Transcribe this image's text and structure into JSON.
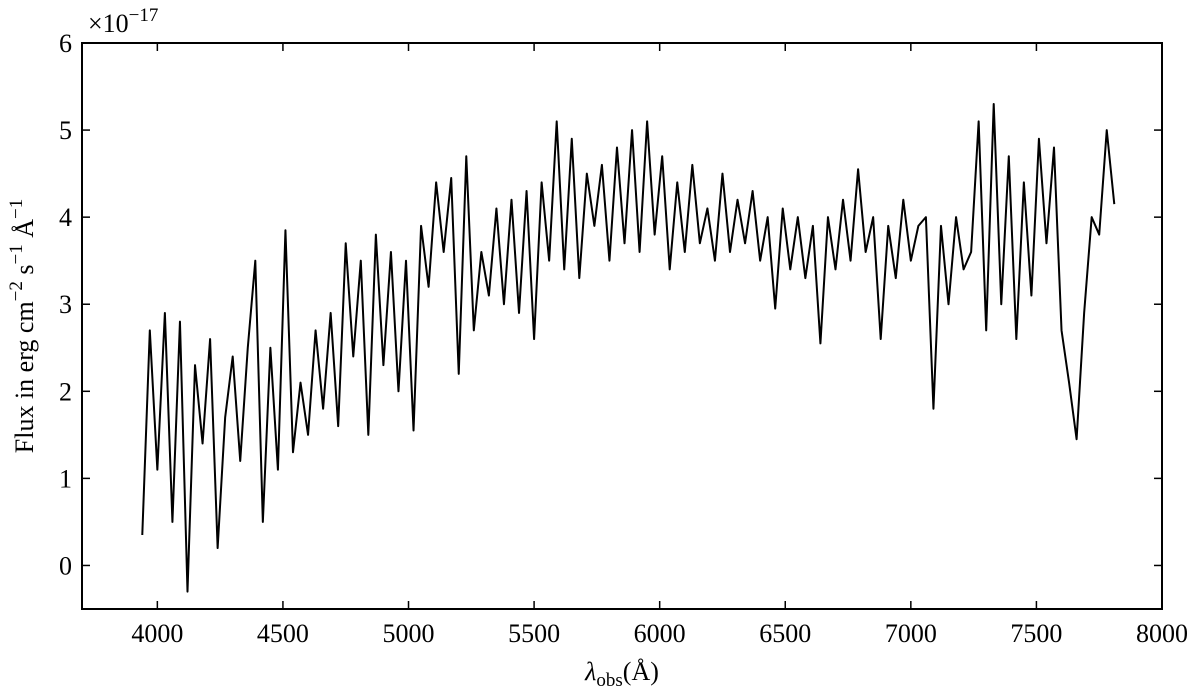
{
  "chart_data": {
    "type": "line",
    "ylabel": [
      "Flux in erg cm",
      "−2",
      " s",
      "−1",
      " Å",
      "−1"
    ],
    "xlabel": [
      "λ",
      "obs",
      "(Å)"
    ],
    "y_offset_label": [
      "×10",
      "−17"
    ],
    "color": "#000000",
    "xlim": [
      3700,
      8000
    ],
    "xticks": [
      4000,
      4500,
      5000,
      5500,
      6000,
      6500,
      7000,
      7500,
      8000
    ],
    "ylim": [
      -0.5,
      6
    ],
    "yticks": [
      0,
      1,
      2,
      3,
      4,
      5,
      6
    ],
    "x": [
      3940,
      3970,
      4000,
      4030,
      4060,
      4090,
      4120,
      4150,
      4180,
      4210,
      4240,
      4270,
      4300,
      4330,
      4360,
      4390,
      4420,
      4450,
      4480,
      4510,
      4540,
      4570,
      4600,
      4630,
      4660,
      4690,
      4720,
      4750,
      4780,
      4810,
      4840,
      4870,
      4900,
      4930,
      4960,
      4990,
      5020,
      5050,
      5080,
      5110,
      5140,
      5170,
      5200,
      5230,
      5260,
      5290,
      5320,
      5350,
      5380,
      5410,
      5440,
      5470,
      5500,
      5530,
      5560,
      5590,
      5620,
      5650,
      5680,
      5710,
      5740,
      5770,
      5800,
      5830,
      5860,
      5890,
      5920,
      5950,
      5980,
      6010,
      6040,
      6070,
      6100,
      6130,
      6160,
      6190,
      6220,
      6250,
      6280,
      6310,
      6340,
      6370,
      6400,
      6430,
      6460,
      6490,
      6520,
      6550,
      6580,
      6610,
      6640,
      6670,
      6700,
      6730,
      6760,
      6790,
      6820,
      6850,
      6880,
      6910,
      6940,
      6970,
      7000,
      7030,
      7060,
      7090,
      7120,
      7150,
      7180,
      7210,
      7240,
      7270,
      7300,
      7330,
      7360,
      7390,
      7420,
      7450,
      7480,
      7510,
      7540,
      7570,
      7600,
      7630,
      7660,
      7690,
      7720,
      7750,
      7780,
      7810
    ],
    "values": [
      0.35,
      2.7,
      1.1,
      2.9,
      0.5,
      2.8,
      -0.3,
      2.3,
      1.4,
      2.6,
      0.2,
      1.7,
      2.4,
      1.2,
      2.5,
      3.5,
      0.5,
      2.5,
      1.1,
      3.85,
      1.3,
      2.1,
      1.5,
      2.7,
      1.8,
      2.9,
      1.6,
      3.7,
      2.4,
      3.5,
      1.5,
      3.8,
      2.3,
      3.6,
      2.0,
      3.5,
      1.55,
      3.9,
      3.2,
      4.4,
      3.6,
      4.45,
      2.2,
      4.7,
      2.7,
      3.6,
      3.1,
      4.1,
      3.0,
      4.2,
      2.9,
      4.3,
      2.6,
      4.4,
      3.5,
      5.1,
      3.4,
      4.9,
      3.3,
      4.5,
      3.9,
      4.6,
      3.5,
      4.8,
      3.7,
      5.0,
      3.6,
      5.1,
      3.8,
      4.7,
      3.4,
      4.4,
      3.6,
      4.6,
      3.7,
      4.1,
      3.5,
      4.5,
      3.6,
      4.2,
      3.7,
      4.3,
      3.5,
      4.0,
      2.95,
      4.1,
      3.4,
      4.0,
      3.3,
      3.9,
      2.55,
      4.0,
      3.4,
      4.2,
      3.5,
      4.55,
      3.6,
      4.0,
      2.6,
      3.9,
      3.3,
      4.2,
      3.5,
      3.9,
      4.0,
      1.8,
      3.9,
      3.0,
      4.0,
      3.4,
      3.6,
      5.1,
      2.7,
      5.3,
      3.0,
      4.7,
      2.6,
      4.4,
      3.1,
      4.9,
      3.7,
      4.8,
      2.7,
      2.1,
      1.45,
      2.9,
      4.0,
      3.8,
      5.0,
      4.15
    ]
  }
}
